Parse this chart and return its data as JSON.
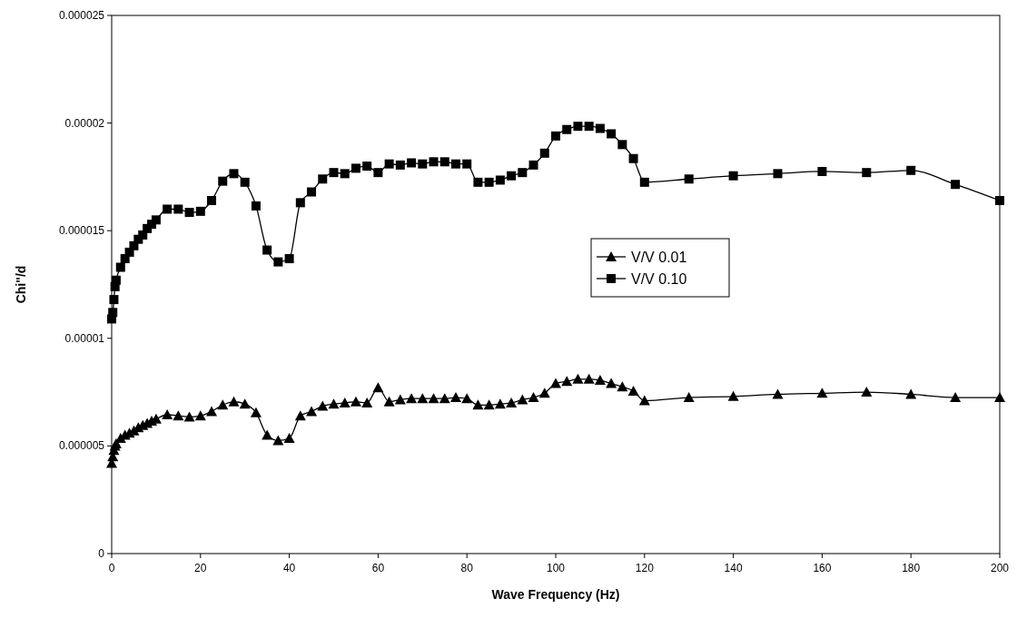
{
  "chart_data": {
    "type": "line",
    "xlabel": "Wave Frequency (Hz)",
    "ylabel": "Chi\"/d",
    "xlim": [
      0,
      200
    ],
    "xticks": [
      0,
      20,
      40,
      60,
      80,
      100,
      120,
      140,
      160,
      180,
      200
    ],
    "ylim": [
      0,
      2.5e-05
    ],
    "yticks": [
      0,
      {
        "value": 5e-06,
        "label": "0.000005"
      },
      {
        "value": 1e-05,
        "label": "0.00001"
      },
      {
        "value": 1.5e-05,
        "label": "0.000015"
      },
      {
        "value": 2e-05,
        "label": "0.00002"
      },
      {
        "value": 2.5e-05,
        "label": "0.000025"
      }
    ],
    "grid": false,
    "legend": "right",
    "line_style": "solid",
    "series": [
      {
        "name": "V/V 0.01",
        "color": "#000000",
        "marker": "triangle",
        "x": [
          0,
          0.25,
          0.5,
          0.75,
          1,
          2,
          3,
          4,
          5,
          6,
          7,
          8,
          9,
          10,
          12.5,
          15,
          17.5,
          20,
          22.5,
          25,
          27.5,
          30,
          32.5,
          35,
          37.5,
          40,
          42.5,
          45,
          47.5,
          50,
          52.5,
          55,
          57.5,
          60,
          62.5,
          65,
          67.5,
          70,
          72.5,
          75,
          77.5,
          80,
          82.5,
          85,
          87.5,
          90,
          92.5,
          95,
          97.5,
          100,
          102.5,
          105,
          107.5,
          110,
          112.5,
          115,
          117.5,
          120,
          130,
          140,
          150,
          160,
          170,
          180,
          190,
          200
        ],
        "values": [
          4.2e-06,
          4.5e-06,
          4.8e-06,
          5e-06,
          5.1e-06,
          5.35e-06,
          5.5e-06,
          5.6e-06,
          5.7e-06,
          5.85e-06,
          5.95e-06,
          6.05e-06,
          6.15e-06,
          6.25e-06,
          6.45e-06,
          6.4e-06,
          6.35e-06,
          6.4e-06,
          6.6e-06,
          6.9e-06,
          7.05e-06,
          6.95e-06,
          6.55e-06,
          5.5e-06,
          5.25e-06,
          5.35e-06,
          6.4e-06,
          6.6e-06,
          6.85e-06,
          6.95e-06,
          7e-06,
          7.05e-06,
          7e-06,
          7.7e-06,
          7.05e-06,
          7.15e-06,
          7.2e-06,
          7.2e-06,
          7.2e-06,
          7.2e-06,
          7.25e-06,
          7.2e-06,
          6.9e-06,
          6.9e-06,
          6.95e-06,
          7e-06,
          7.15e-06,
          7.25e-06,
          7.45e-06,
          7.9e-06,
          8e-06,
          8.1e-06,
          8.1e-06,
          8.05e-06,
          7.9e-06,
          7.75e-06,
          7.55e-06,
          7.1e-06,
          7.25e-06,
          7.3e-06,
          7.4e-06,
          7.45e-06,
          7.5e-06,
          7.4e-06,
          7.25e-06,
          7.25e-06
        ]
      },
      {
        "name": "V/V 0.10",
        "color": "#000000",
        "marker": "square",
        "x": [
          0,
          0.25,
          0.5,
          0.75,
          1,
          2,
          3,
          4,
          5,
          6,
          7,
          8,
          9,
          10,
          12.5,
          15,
          17.5,
          20,
          22.5,
          25,
          27.5,
          30,
          32.5,
          35,
          37.5,
          40,
          42.5,
          45,
          47.5,
          50,
          52.5,
          55,
          57.5,
          60,
          62.5,
          65,
          67.5,
          70,
          72.5,
          75,
          77.5,
          80,
          82.5,
          85,
          87.5,
          90,
          92.5,
          95,
          97.5,
          100,
          102.5,
          105,
          107.5,
          110,
          112.5,
          115,
          117.5,
          120,
          130,
          140,
          150,
          160,
          170,
          180,
          190,
          200
        ],
        "values": [
          1.09e-05,
          1.12e-05,
          1.18e-05,
          1.24e-05,
          1.27e-05,
          1.33e-05,
          1.37e-05,
          1.4e-05,
          1.43e-05,
          1.46e-05,
          1.48e-05,
          1.51e-05,
          1.53e-05,
          1.55e-05,
          1.6e-05,
          1.6e-05,
          1.585e-05,
          1.59e-05,
          1.64e-05,
          1.73e-05,
          1.765e-05,
          1.725e-05,
          1.615e-05,
          1.41e-05,
          1.355e-05,
          1.37e-05,
          1.63e-05,
          1.68e-05,
          1.74e-05,
          1.77e-05,
          1.765e-05,
          1.79e-05,
          1.8e-05,
          1.77e-05,
          1.81e-05,
          1.805e-05,
          1.815e-05,
          1.81e-05,
          1.82e-05,
          1.82e-05,
          1.81e-05,
          1.81e-05,
          1.725e-05,
          1.725e-05,
          1.735e-05,
          1.755e-05,
          1.77e-05,
          1.805e-05,
          1.86e-05,
          1.94e-05,
          1.97e-05,
          1.985e-05,
          1.985e-05,
          1.975e-05,
          1.95e-05,
          1.9e-05,
          1.835e-05,
          1.725e-05,
          1.74e-05,
          1.755e-05,
          1.765e-05,
          1.775e-05,
          1.77e-05,
          1.78e-05,
          1.715e-05,
          1.64e-05
        ]
      }
    ]
  }
}
